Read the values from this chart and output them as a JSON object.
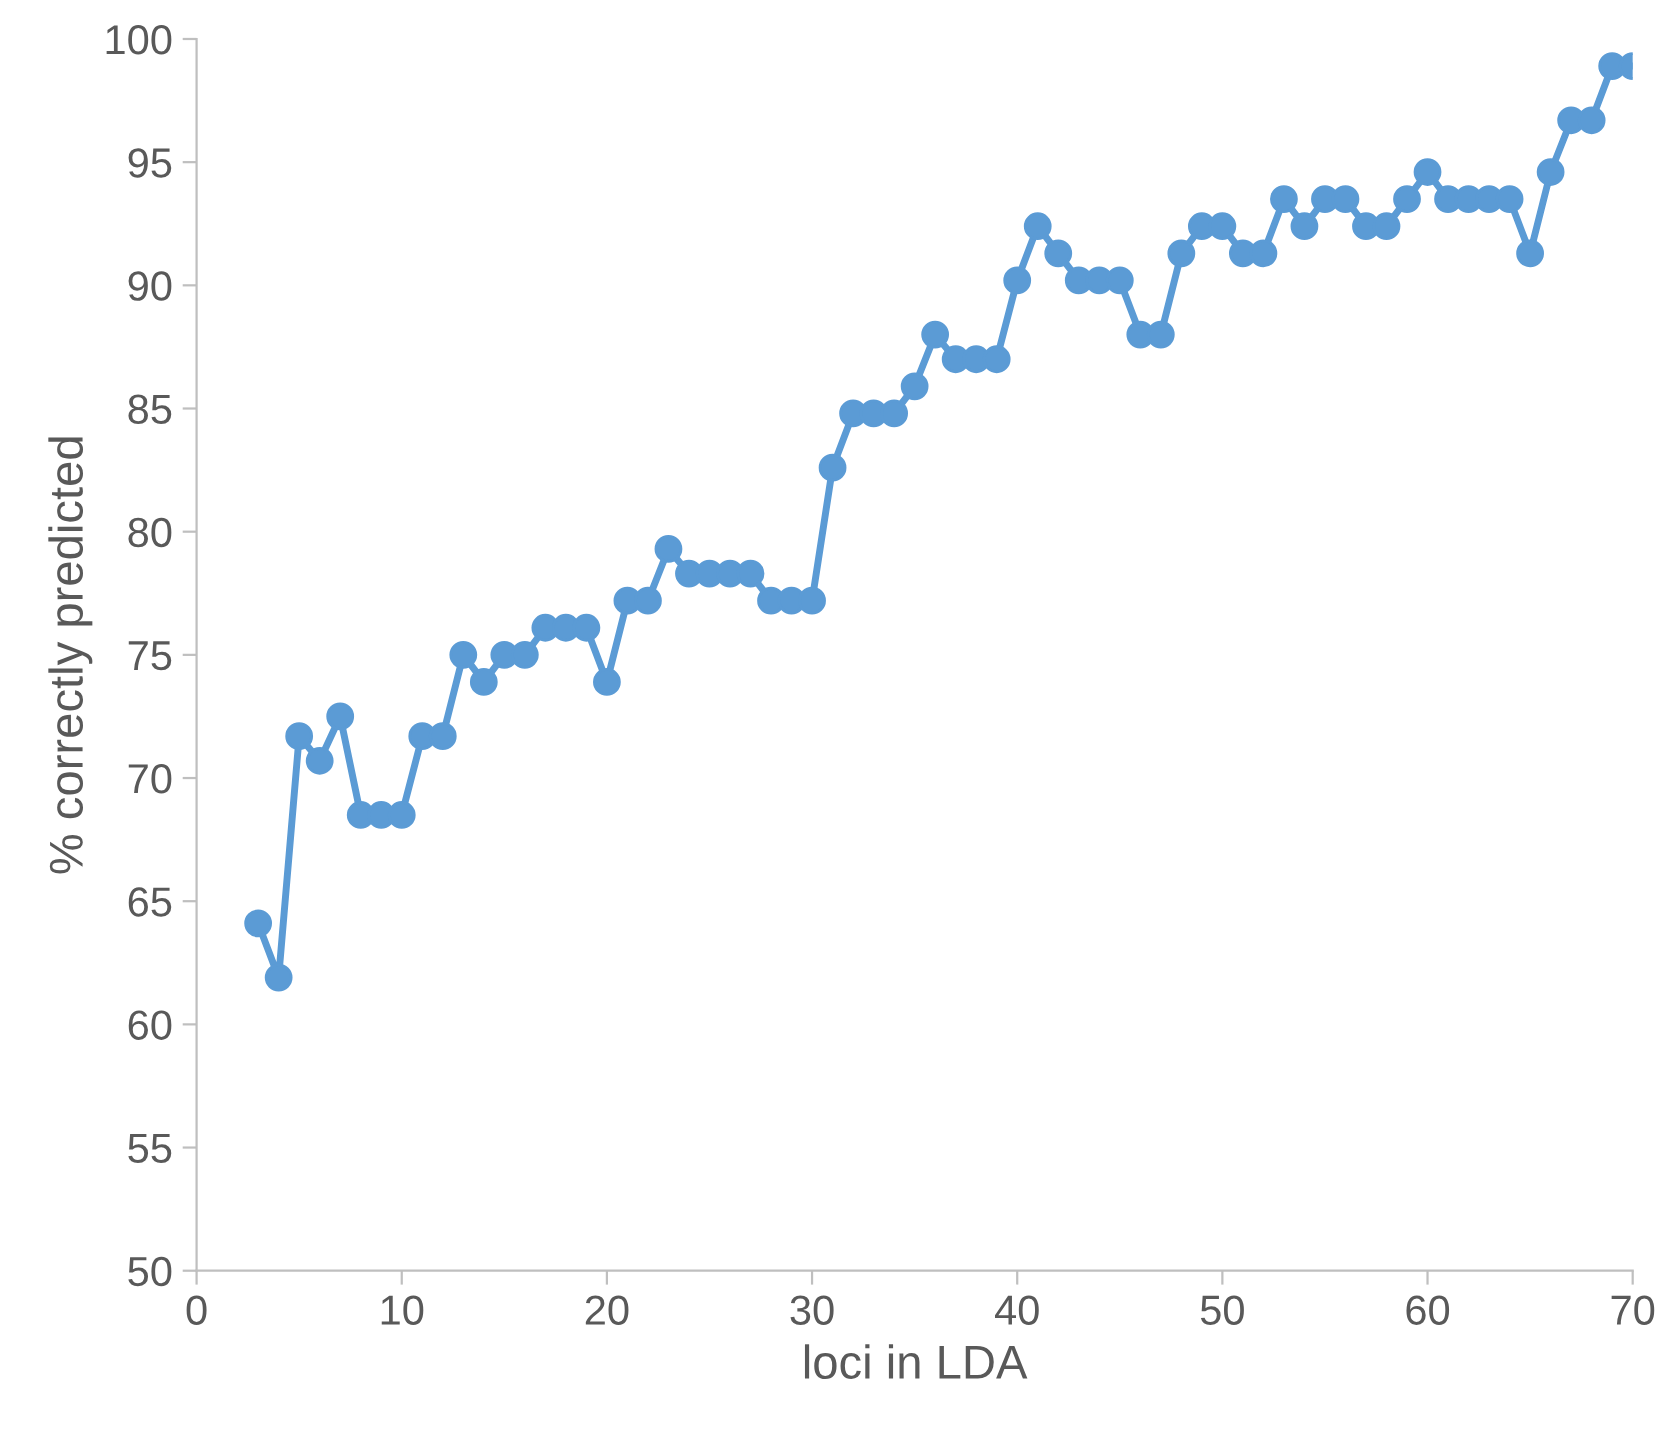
{
  "chart_data": {
    "type": "line",
    "xlabel": "loci in LDA",
    "ylabel": "% correctly predicted",
    "xlim": [
      0,
      70
    ],
    "xticks": [
      0,
      10,
      20,
      30,
      40,
      50,
      60,
      70
    ],
    "ylim": [
      50,
      100
    ],
    "yticks": [
      50,
      55,
      60,
      65,
      70,
      75,
      80,
      85,
      90,
      95,
      100
    ],
    "grid": false,
    "marker": "circle",
    "line_style": "solid",
    "x": [
      3,
      4,
      5,
      6,
      7,
      8,
      9,
      10,
      11,
      12,
      13,
      14,
      15,
      16,
      17,
      18,
      19,
      20,
      21,
      22,
      23,
      24,
      25,
      26,
      27,
      28,
      29,
      30,
      31,
      32,
      33,
      34,
      35,
      36,
      37,
      38,
      39,
      40,
      41,
      42,
      43,
      44,
      45,
      46,
      47,
      48,
      49,
      50,
      51,
      52,
      53,
      54,
      55,
      56,
      57,
      58,
      59,
      60,
      61,
      62,
      63,
      64,
      65,
      66,
      67,
      68,
      69,
      70
    ],
    "series": [
      {
        "color": "#5b9bd5",
        "values": [
          64.1,
          61.9,
          71.7,
          70.7,
          72.5,
          68.5,
          68.5,
          68.5,
          71.7,
          71.7,
          75.0,
          73.9,
          75.0,
          75.0,
          76.1,
          76.1,
          76.1,
          73.9,
          77.2,
          77.2,
          79.3,
          78.3,
          78.3,
          78.3,
          78.3,
          77.2,
          77.2,
          77.2,
          82.6,
          84.8,
          84.8,
          84.8,
          85.9,
          88.0,
          87.0,
          87.0,
          87.0,
          90.2,
          92.4,
          91.3,
          90.2,
          90.2,
          90.2,
          88.0,
          88.0,
          91.3,
          92.4,
          92.4,
          91.3,
          91.3,
          93.5,
          92.4,
          93.5,
          93.5,
          92.4,
          92.4,
          93.5,
          94.6,
          93.5,
          93.5,
          93.5,
          93.5,
          91.3,
          94.6,
          96.7,
          96.7,
          98.9,
          98.9
        ]
      }
    ]
  }
}
